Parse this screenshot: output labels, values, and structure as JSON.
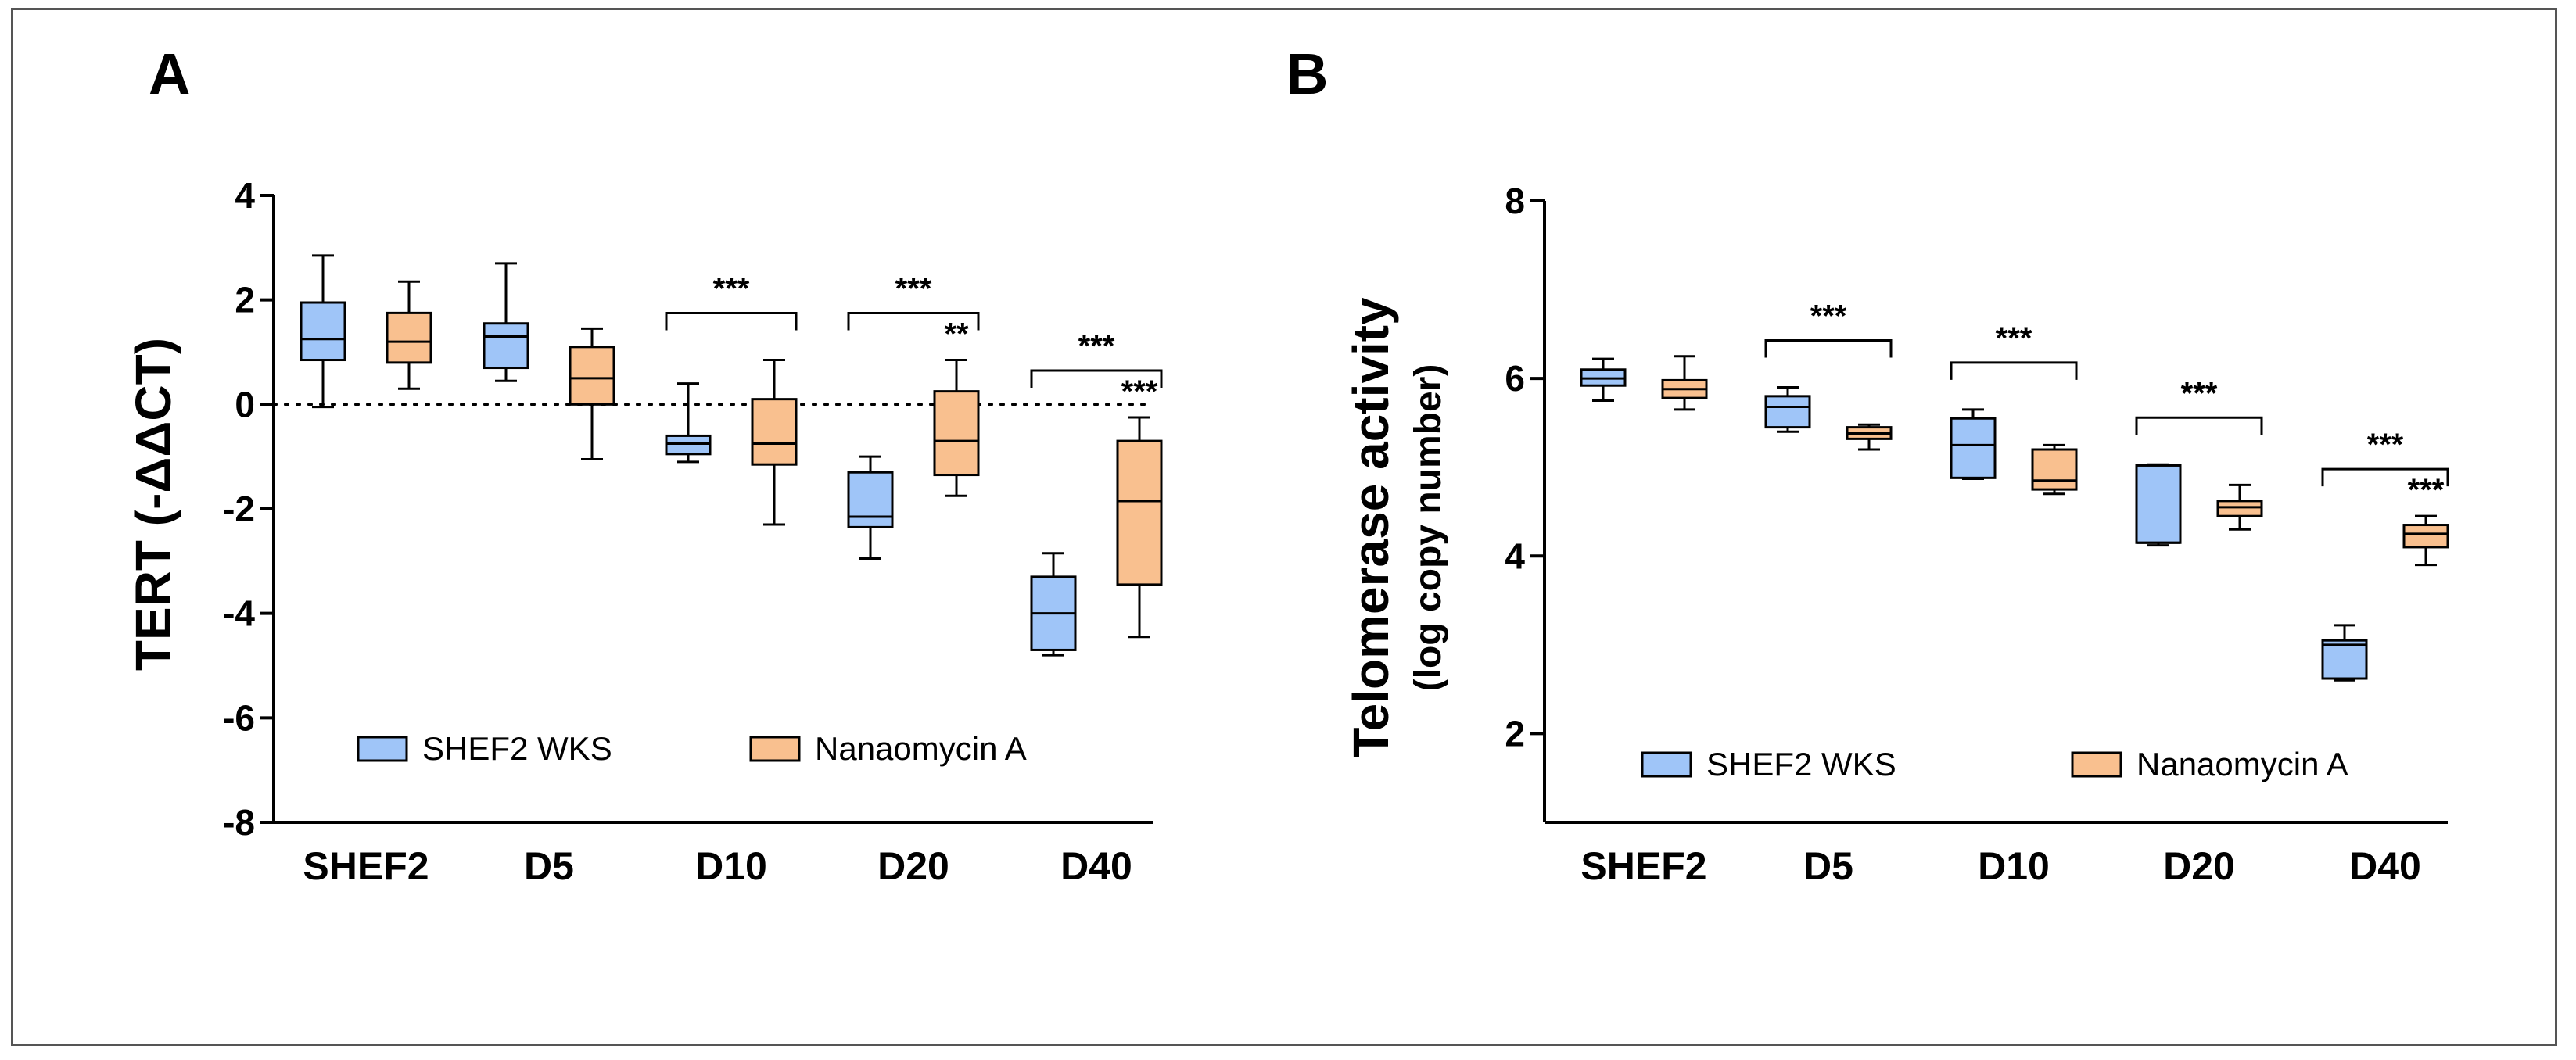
{
  "colors": {
    "series_blue": "#9fc5f8",
    "series_orange": "#f9c08f",
    "stroke": "#000000",
    "frame": "#555555"
  },
  "chart_data": [
    {
      "type": "box",
      "panel": "A",
      "ylabel": "TERT (-ΔΔCT)",
      "xlabel": "",
      "ylim": [
        -8,
        4
      ],
      "yticks": [
        4,
        2,
        0,
        -2,
        -4,
        -6,
        -8
      ],
      "ytick_labels": [
        "4",
        "2",
        "0",
        "-2",
        "-4",
        "-6",
        "-8"
      ],
      "reference_line": 0,
      "categories": [
        "SHEF2",
        "D5",
        "D10",
        "D20",
        "D40"
      ],
      "legend": [
        "SHEF2 WKS",
        "Nanaomycin A"
      ],
      "series": [
        {
          "name": "SHEF2 WKS",
          "boxes": [
            {
              "min": -0.05,
              "q1": 0.85,
              "median": 1.25,
              "q3": 1.95,
              "max": 2.85
            },
            {
              "min": 0.45,
              "q1": 0.7,
              "median": 1.3,
              "q3": 1.55,
              "max": 2.7
            },
            {
              "min": -1.1,
              "q1": -0.95,
              "median": -0.75,
              "q3": -0.6,
              "max": 0.4
            },
            {
              "min": -2.95,
              "q1": -2.35,
              "median": -2.15,
              "q3": -1.3,
              "max": -1.0
            },
            {
              "min": -4.8,
              "q1": -4.7,
              "median": -4.0,
              "q3": -3.3,
              "max": -2.85
            }
          ]
        },
        {
          "name": "Nanaomycin A",
          "boxes": [
            {
              "min": 0.3,
              "q1": 0.8,
              "median": 1.2,
              "q3": 1.75,
              "max": 2.35
            },
            {
              "min": -1.05,
              "q1": 0.0,
              "median": 0.5,
              "q3": 1.1,
              "max": 1.45
            },
            {
              "min": -2.3,
              "q1": -1.15,
              "median": -0.75,
              "q3": 0.1,
              "max": 0.85
            },
            {
              "min": -1.75,
              "q1": -1.35,
              "median": -0.7,
              "q3": 0.25,
              "max": 0.85
            },
            {
              "min": -4.45,
              "q1": -3.45,
              "median": -1.85,
              "q3": -0.7,
              "max": -0.25
            }
          ]
        }
      ],
      "annotations": [
        {
          "text": "***",
          "type": "bracket",
          "from": 2,
          "to": 2
        },
        {
          "text": "***",
          "type": "bracket",
          "from": 3,
          "to": 3
        },
        {
          "text": "**",
          "type": "star",
          "category": 3,
          "series": 1
        },
        {
          "text": "***",
          "type": "bracket",
          "from": 4,
          "to": 4
        },
        {
          "text": "***",
          "type": "star",
          "category": 4,
          "series": 1
        }
      ]
    },
    {
      "type": "box",
      "panel": "B",
      "ylabel": "Telomerase activity",
      "ylabel_sub": "(log copy number)",
      "xlabel": "",
      "ylim": [
        1,
        8
      ],
      "yticks": [
        8,
        6,
        4,
        2
      ],
      "ytick_labels": [
        "8",
        "6",
        "4",
        "2"
      ],
      "categories": [
        "SHEF2",
        "D5",
        "D10",
        "D20",
        "D40"
      ],
      "legend": [
        "SHEF2 WKS",
        "Nanaomycin A"
      ],
      "series": [
        {
          "name": "SHEF2 WKS",
          "boxes": [
            {
              "min": 5.75,
              "q1": 5.92,
              "median": 6.0,
              "q3": 6.1,
              "max": 6.22
            },
            {
              "min": 5.4,
              "q1": 5.45,
              "median": 5.68,
              "q3": 5.8,
              "max": 5.9
            },
            {
              "min": 4.87,
              "q1": 4.88,
              "median": 5.25,
              "q3": 5.55,
              "max": 5.65
            },
            {
              "min": 4.12,
              "q1": 4.15,
              "median": 4.15,
              "q3": 5.02,
              "max": 5.03
            },
            {
              "min": 2.6,
              "q1": 2.62,
              "median": 3.0,
              "q3": 3.05,
              "max": 3.22
            }
          ]
        },
        {
          "name": "Nanaomycin A",
          "boxes": [
            {
              "min": 5.65,
              "q1": 5.78,
              "median": 5.88,
              "q3": 5.98,
              "max": 6.25
            },
            {
              "min": 5.2,
              "q1": 5.32,
              "median": 5.38,
              "q3": 5.45,
              "max": 5.48
            },
            {
              "min": 4.7,
              "q1": 4.75,
              "median": 4.85,
              "q3": 5.2,
              "max": 5.25
            },
            {
              "min": 4.3,
              "q1": 4.45,
              "median": 4.55,
              "q3": 4.62,
              "max": 4.8
            },
            {
              "min": 3.9,
              "q1": 4.1,
              "median": 4.25,
              "q3": 4.35,
              "max": 4.45
            }
          ]
        }
      ],
      "annotations": [
        {
          "text": "***",
          "type": "bracket",
          "from": 1,
          "to": 1
        },
        {
          "text": "***",
          "type": "bracket",
          "from": 2,
          "to": 2
        },
        {
          "text": "***",
          "type": "bracket",
          "from": 3,
          "to": 3
        },
        {
          "text": "***",
          "type": "bracket",
          "from": 4,
          "to": 4
        },
        {
          "text": "***",
          "type": "star",
          "category": 4,
          "series": 1
        }
      ]
    }
  ]
}
